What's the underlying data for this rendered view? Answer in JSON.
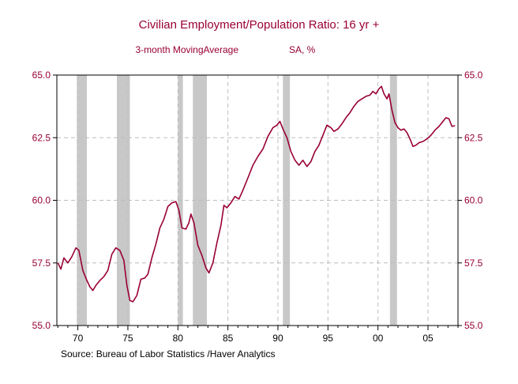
{
  "chart_data": {
    "type": "line",
    "title": "Civilian Employment/Population Ratio: 16 yr +",
    "subtitle": "3-month MovingAverage",
    "units": "SA, %",
    "source": "Source:  Bureau of Labor Statistics /Haver Analytics",
    "xlim": [
      1967.9,
      2008.0
    ],
    "ylim": [
      55.0,
      65.0
    ],
    "x_ticks": [
      1970,
      1975,
      1980,
      1985,
      1990,
      1995,
      2000,
      2005
    ],
    "x_tick_labels": [
      "70",
      "75",
      "80",
      "85",
      "90",
      "95",
      "00",
      "05"
    ],
    "y_ticks": [
      55.0,
      57.5,
      60.0,
      62.5,
      65.0
    ],
    "y_tick_labels": [
      "55.0",
      "57.5",
      "60.0",
      "62.5",
      "65.0"
    ],
    "recessions": [
      {
        "start": 1969.9,
        "end": 1970.9
      },
      {
        "start": 1973.9,
        "end": 1975.2
      },
      {
        "start": 1980.0,
        "end": 1980.5
      },
      {
        "start": 1981.5,
        "end": 1982.9
      },
      {
        "start": 1990.5,
        "end": 1991.2
      },
      {
        "start": 2001.2,
        "end": 2001.9
      }
    ],
    "series": [
      {
        "name": "Civilian Employment/Population Ratio",
        "color": "#990033",
        "points": [
          [
            1968.0,
            57.5
          ],
          [
            1968.3,
            57.25
          ],
          [
            1968.6,
            57.7
          ],
          [
            1969.0,
            57.5
          ],
          [
            1969.4,
            57.75
          ],
          [
            1969.8,
            58.1
          ],
          [
            1970.1,
            58.0
          ],
          [
            1970.5,
            57.2
          ],
          [
            1970.9,
            56.8
          ],
          [
            1971.2,
            56.55
          ],
          [
            1971.5,
            56.4
          ],
          [
            1971.8,
            56.6
          ],
          [
            1972.2,
            56.8
          ],
          [
            1972.6,
            56.95
          ],
          [
            1973.0,
            57.2
          ],
          [
            1973.4,
            57.85
          ],
          [
            1973.8,
            58.1
          ],
          [
            1974.2,
            58.0
          ],
          [
            1974.6,
            57.6
          ],
          [
            1974.9,
            56.6
          ],
          [
            1975.2,
            56.0
          ],
          [
            1975.5,
            55.95
          ],
          [
            1975.9,
            56.2
          ],
          [
            1976.3,
            56.85
          ],
          [
            1976.7,
            56.9
          ],
          [
            1977.0,
            57.05
          ],
          [
            1977.4,
            57.7
          ],
          [
            1977.8,
            58.25
          ],
          [
            1978.2,
            58.9
          ],
          [
            1978.6,
            59.25
          ],
          [
            1979.0,
            59.75
          ],
          [
            1979.4,
            59.9
          ],
          [
            1979.8,
            59.95
          ],
          [
            1980.1,
            59.6
          ],
          [
            1980.4,
            58.9
          ],
          [
            1980.8,
            58.85
          ],
          [
            1981.1,
            59.1
          ],
          [
            1981.3,
            59.45
          ],
          [
            1981.6,
            59.1
          ],
          [
            1982.0,
            58.2
          ],
          [
            1982.4,
            57.8
          ],
          [
            1982.8,
            57.3
          ],
          [
            1983.1,
            57.1
          ],
          [
            1983.5,
            57.5
          ],
          [
            1983.9,
            58.3
          ],
          [
            1984.3,
            59.0
          ],
          [
            1984.6,
            59.8
          ],
          [
            1984.9,
            59.7
          ],
          [
            1985.3,
            59.9
          ],
          [
            1985.7,
            60.15
          ],
          [
            1986.1,
            60.05
          ],
          [
            1986.5,
            60.4
          ],
          [
            1987.0,
            60.9
          ],
          [
            1987.5,
            61.4
          ],
          [
            1988.0,
            61.75
          ],
          [
            1988.5,
            62.05
          ],
          [
            1989.0,
            62.55
          ],
          [
            1989.5,
            62.9
          ],
          [
            1989.9,
            63.0
          ],
          [
            1990.2,
            63.15
          ],
          [
            1990.5,
            62.85
          ],
          [
            1990.9,
            62.5
          ],
          [
            1991.3,
            61.95
          ],
          [
            1991.7,
            61.6
          ],
          [
            1992.1,
            61.4
          ],
          [
            1992.5,
            61.6
          ],
          [
            1992.9,
            61.35
          ],
          [
            1993.3,
            61.55
          ],
          [
            1993.7,
            61.95
          ],
          [
            1994.1,
            62.2
          ],
          [
            1994.5,
            62.6
          ],
          [
            1994.9,
            63.0
          ],
          [
            1995.3,
            62.9
          ],
          [
            1995.6,
            62.75
          ],
          [
            1996.0,
            62.85
          ],
          [
            1996.4,
            63.05
          ],
          [
            1996.8,
            63.3
          ],
          [
            1997.2,
            63.5
          ],
          [
            1997.6,
            63.75
          ],
          [
            1998.0,
            63.95
          ],
          [
            1998.4,
            64.05
          ],
          [
            1998.8,
            64.15
          ],
          [
            1999.2,
            64.2
          ],
          [
            1999.5,
            64.35
          ],
          [
            1999.8,
            64.25
          ],
          [
            2000.1,
            64.45
          ],
          [
            2000.35,
            64.55
          ],
          [
            2000.6,
            64.25
          ],
          [
            2000.9,
            64.05
          ],
          [
            2001.1,
            64.25
          ],
          [
            2001.4,
            63.6
          ],
          [
            2001.7,
            63.1
          ],
          [
            2002.0,
            62.9
          ],
          [
            2002.3,
            62.8
          ],
          [
            2002.6,
            62.85
          ],
          [
            2002.9,
            62.7
          ],
          [
            2003.2,
            62.45
          ],
          [
            2003.5,
            62.15
          ],
          [
            2003.8,
            62.2
          ],
          [
            2004.1,
            62.3
          ],
          [
            2004.5,
            62.35
          ],
          [
            2004.9,
            62.45
          ],
          [
            2005.3,
            62.6
          ],
          [
            2005.7,
            62.8
          ],
          [
            2006.1,
            62.95
          ],
          [
            2006.5,
            63.15
          ],
          [
            2006.8,
            63.3
          ],
          [
            2007.1,
            63.25
          ],
          [
            2007.4,
            62.95
          ],
          [
            2007.7,
            62.98
          ]
        ]
      }
    ]
  }
}
